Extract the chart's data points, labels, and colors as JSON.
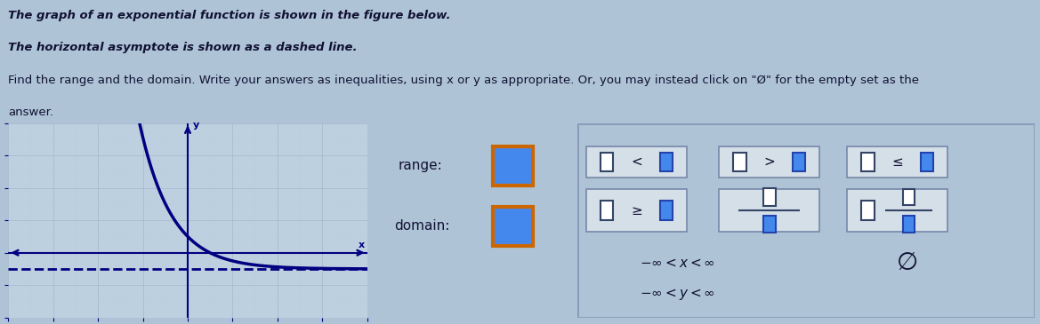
{
  "line1": "The graph of an exponential function is shown in the figure below.",
  "line2": "The horizontal asymptote is shown as a dashed line.",
  "line3": "Find the range and the domain. Write your answers as inequalities, using x or y as appropriate. Or, you may instead click on \"Ø\" for the empty set as the",
  "line4": "answer.",
  "bg_color": "#aec3d5",
  "graph_panel_bg": "#bdd0e0",
  "mid_panel_bg": "#c5d5e5",
  "right_panel_bg": "#d5e0ea",
  "x_range": [
    -8,
    8
  ],
  "y_range": [
    -4,
    8
  ],
  "asymptote_y": -1,
  "curve_color": "#000080",
  "axis_color": "#000080",
  "dashed_color": "#000080",
  "grid_major_color": "#9ab0c5",
  "grid_minor_color": "#b5c8d8",
  "text_dark": "#111133",
  "orange_box": "#cc6600",
  "blue_fill": "#4488ee",
  "title_fontsize": 9.5,
  "label_fontsize": 11,
  "tick_fontsize": 7.5
}
